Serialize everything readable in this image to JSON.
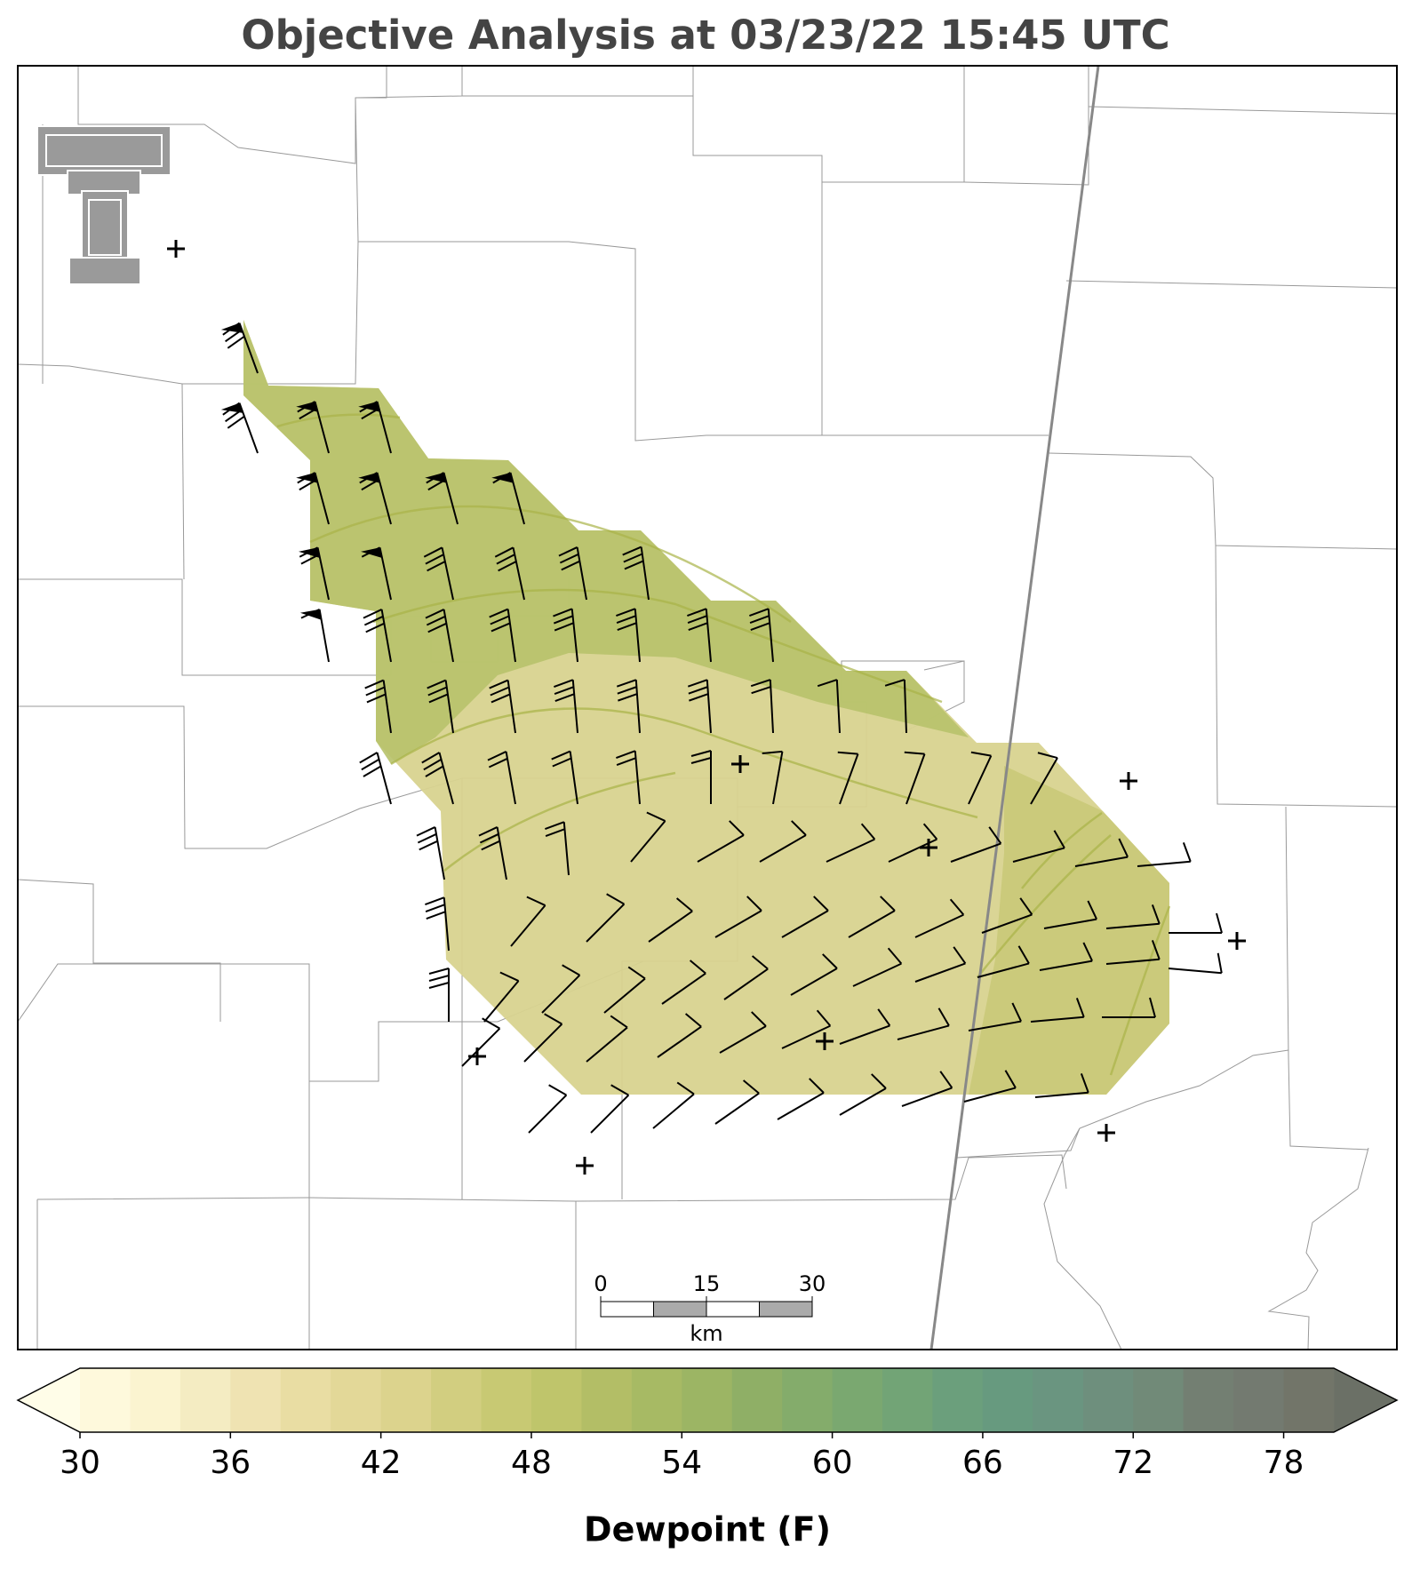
{
  "title": "Objective Analysis at 03/23/22 15:45 UTC",
  "chart_data": {
    "type": "colorbar",
    "label": "Dewpoint (F)",
    "xlim": [
      30,
      80
    ],
    "xticks": [
      30,
      36,
      42,
      48,
      54,
      60,
      66,
      72,
      78
    ],
    "colors": [
      "#fef9dc",
      "#fbf4d0",
      "#f4ecc2",
      "#efe3b2",
      "#e9dda3",
      "#e3d898",
      "#dcd38d",
      "#d2ce80",
      "#c8c973",
      "#bfc56b",
      "#b3be66",
      "#a7ba64",
      "#9cb564",
      "#8faf66",
      "#84ac6b",
      "#7aa870",
      "#72a476",
      "#6b9f7c",
      "#679a7f",
      "#6a9580",
      "#6e8f7d",
      "#718a78",
      "#737f72",
      "#737a70",
      "#727569"
    ],
    "under_color": "#fffde8",
    "over_color": "#6b7066"
  },
  "scale_bar": {
    "ticks": [
      0,
      15,
      30
    ],
    "unit": "km"
  }
}
